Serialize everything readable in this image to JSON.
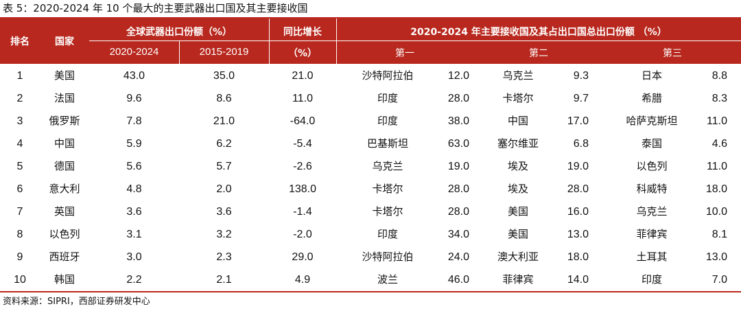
{
  "caption": "表 5：2020-2024 年 10 个最大的主要武器出口国及其主要接收国",
  "header": {
    "rank": "排名",
    "country": "国家",
    "share_group": "全球武器出口份额（%）",
    "share_2020_2024": "2020-2024",
    "share_2015_2019": "2015-2019",
    "growth_line1": "同比增长",
    "growth_line2": "（%）",
    "recipients_group": "2020-2024 年主要接收国及其占出口国总出口份额 （%）",
    "first": "第一",
    "second": "第二",
    "third": "第三"
  },
  "rows": [
    {
      "rank": "1",
      "country": "美国",
      "share_2020_2024": "43.0",
      "share_2015_2019": "35.0",
      "growth": "21.0",
      "r1_name": "沙特阿拉伯",
      "r1_share": "12.0",
      "r2_name": "乌克兰",
      "r2_share": "9.3",
      "r3_name": "日本",
      "r3_share": "8.8"
    },
    {
      "rank": "2",
      "country": "法国",
      "share_2020_2024": "9.6",
      "share_2015_2019": "8.6",
      "growth": "11.0",
      "r1_name": "印度",
      "r1_share": "28.0",
      "r2_name": "卡塔尔",
      "r2_share": "9.7",
      "r3_name": "希腊",
      "r3_share": "8.3"
    },
    {
      "rank": "3",
      "country": "俄罗斯",
      "share_2020_2024": "7.8",
      "share_2015_2019": "21.0",
      "growth": "-64.0",
      "r1_name": "印度",
      "r1_share": "38.0",
      "r2_name": "中国",
      "r2_share": "17.0",
      "r3_name": "哈萨克斯坦",
      "r3_share": "11.0"
    },
    {
      "rank": "4",
      "country": "中国",
      "share_2020_2024": "5.9",
      "share_2015_2019": "6.2",
      "growth": "-5.4",
      "r1_name": "巴基斯坦",
      "r1_share": "63.0",
      "r2_name": "塞尔维亚",
      "r2_share": "6.8",
      "r3_name": "泰国",
      "r3_share": "4.6"
    },
    {
      "rank": "5",
      "country": "德国",
      "share_2020_2024": "5.6",
      "share_2015_2019": "5.7",
      "growth": "-2.6",
      "r1_name": "乌克兰",
      "r1_share": "19.0",
      "r2_name": "埃及",
      "r2_share": "19.0",
      "r3_name": "以色列",
      "r3_share": "11.0"
    },
    {
      "rank": "6",
      "country": "意大利",
      "share_2020_2024": "4.8",
      "share_2015_2019": "2.0",
      "growth": "138.0",
      "r1_name": "卡塔尔",
      "r1_share": "28.0",
      "r2_name": "埃及",
      "r2_share": "28.0",
      "r3_name": "科威特",
      "r3_share": "18.0"
    },
    {
      "rank": "7",
      "country": "英国",
      "share_2020_2024": "3.6",
      "share_2015_2019": "3.6",
      "growth": "-1.4",
      "r1_name": "卡塔尔",
      "r1_share": "28.0",
      "r2_name": "美国",
      "r2_share": "16.0",
      "r3_name": "乌克兰",
      "r3_share": "10.0"
    },
    {
      "rank": "8",
      "country": "以色列",
      "share_2020_2024": "3.1",
      "share_2015_2019": "3.2",
      "growth": "-2.0",
      "r1_name": "印度",
      "r1_share": "34.0",
      "r2_name": "美国",
      "r2_share": "13.0",
      "r3_name": "菲律宾",
      "r3_share": "8.1"
    },
    {
      "rank": "9",
      "country": "西班牙",
      "share_2020_2024": "3.0",
      "share_2015_2019": "2.3",
      "growth": "29.0",
      "r1_name": "沙特阿拉伯",
      "r1_share": "24.0",
      "r2_name": "澳大利亚",
      "r2_share": "18.0",
      "r3_name": "土耳其",
      "r3_share": "13.0"
    },
    {
      "rank": "10",
      "country": "韩国",
      "share_2020_2024": "2.2",
      "share_2015_2019": "2.1",
      "growth": "4.9",
      "r1_name": "波兰",
      "r1_share": "46.0",
      "r2_name": "菲律宾",
      "r2_share": "14.0",
      "r3_name": "印度",
      "r3_share": "7.0"
    }
  ],
  "source": "资料来源：SIPRI，西部证券研发中心",
  "colors": {
    "header_bg": "#b8281e",
    "header_text": "#ffffff"
  }
}
